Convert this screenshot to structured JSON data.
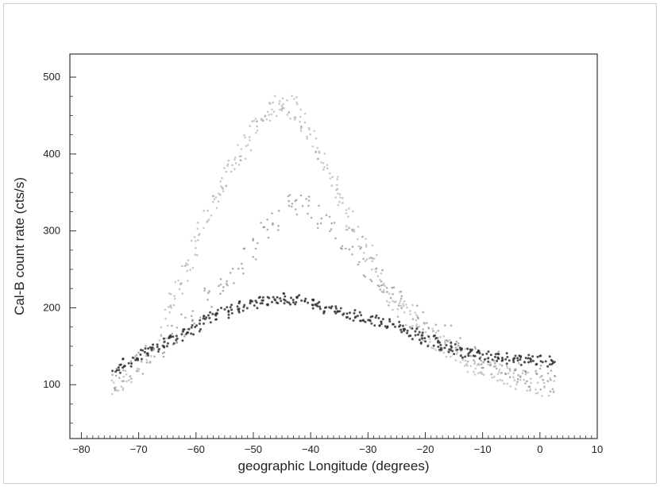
{
  "chart_data": {
    "type": "scatter",
    "title": "",
    "xlabel": "geographic Longitude (degrees)",
    "ylabel": "Cal-B count rate (cts/s)",
    "xlim": [
      -82,
      10
    ],
    "ylim": [
      30,
      530
    ],
    "xticks": [
      -80,
      -70,
      -60,
      -50,
      -40,
      -30,
      -20,
      -10,
      0,
      10
    ],
    "yticks": [
      100,
      200,
      300,
      400,
      500
    ],
    "xtick_labels": [
      "−80",
      "−70",
      "−60",
      "−50",
      "−40",
      "−30",
      "−20",
      "−10",
      "0",
      "10"
    ],
    "ytick_labels": [
      "100",
      "200",
      "300",
      "400",
      "500"
    ],
    "grid": false,
    "legend": "none",
    "series": [
      {
        "values_description": "upper (light) band",
        "color": "#9a9a9a",
        "points": [
          [
            -74,
            95
          ],
          [
            -73,
            105
          ],
          [
            -72,
            112
          ],
          [
            -70,
            125
          ],
          [
            -68,
            140
          ],
          [
            -66,
            165
          ],
          [
            -65,
            190
          ],
          [
            -64,
            205
          ],
          [
            -63,
            225
          ],
          [
            -62,
            245
          ],
          [
            -61,
            262
          ],
          [
            -60,
            280
          ],
          [
            -59,
            300
          ],
          [
            -58,
            315
          ],
          [
            -57,
            332
          ],
          [
            -56,
            350
          ],
          [
            -55,
            368
          ],
          [
            -54,
            380
          ],
          [
            -53,
            395
          ],
          [
            -52,
            405
          ],
          [
            -51,
            418
          ],
          [
            -50,
            430
          ],
          [
            -49,
            440
          ],
          [
            -48,
            448
          ],
          [
            -47,
            455
          ],
          [
            -46,
            462
          ],
          [
            -45,
            468
          ],
          [
            -44,
            465
          ],
          [
            -43,
            460
          ],
          [
            -42,
            452
          ],
          [
            -41,
            440
          ],
          [
            -40,
            425
          ],
          [
            -39,
            410
          ],
          [
            -38,
            395
          ],
          [
            -37,
            380
          ],
          [
            -36,
            362
          ],
          [
            -35,
            345
          ],
          [
            -34,
            330
          ],
          [
            -33,
            315
          ],
          [
            -32,
            300
          ],
          [
            -31,
            285
          ],
          [
            -30,
            270
          ],
          [
            -29,
            255
          ],
          [
            -28,
            242
          ],
          [
            -27,
            230
          ],
          [
            -26,
            218
          ],
          [
            -25,
            208
          ],
          [
            -24,
            198
          ],
          [
            -23,
            190
          ],
          [
            -22,
            182
          ],
          [
            -21,
            175
          ],
          [
            -20,
            168
          ],
          [
            -19,
            162
          ],
          [
            -18,
            156
          ],
          [
            -17,
            150
          ],
          [
            -16,
            146
          ],
          [
            -15,
            142
          ],
          [
            -14,
            138
          ],
          [
            -13,
            134
          ],
          [
            -12,
            130
          ],
          [
            -11,
            126
          ],
          [
            -10,
            123
          ],
          [
            -9,
            120
          ],
          [
            -8,
            118
          ],
          [
            -7,
            115
          ],
          [
            -6,
            112
          ],
          [
            -5,
            110
          ],
          [
            -4,
            108
          ],
          [
            -3,
            106
          ],
          [
            -2,
            104
          ],
          [
            -1,
            102
          ],
          [
            0,
            100
          ],
          [
            1,
            99
          ],
          [
            2,
            98
          ]
        ]
      },
      {
        "values_description": "middle band",
        "color": "#7a7a7a",
        "points": [
          [
            -74,
            110
          ],
          [
            -72,
            120
          ],
          [
            -70,
            128
          ],
          [
            -68,
            138
          ],
          [
            -66,
            150
          ],
          [
            -64,
            165
          ],
          [
            -62,
            180
          ],
          [
            -60,
            195
          ],
          [
            -58,
            210
          ],
          [
            -56,
            228
          ],
          [
            -54,
            245
          ],
          [
            -52,
            262
          ],
          [
            -50,
            280
          ],
          [
            -48,
            300
          ],
          [
            -46,
            318
          ],
          [
            -44,
            330
          ],
          [
            -42,
            335
          ],
          [
            -40,
            330
          ],
          [
            -38,
            320
          ],
          [
            -36,
            305
          ],
          [
            -34,
            288
          ],
          [
            -32,
            270
          ],
          [
            -30,
            252
          ],
          [
            -28,
            236
          ],
          [
            -26,
            220
          ],
          [
            -24,
            205
          ],
          [
            -22,
            192
          ],
          [
            -20,
            180
          ],
          [
            -18,
            170
          ],
          [
            -16,
            160
          ],
          [
            -14,
            150
          ],
          [
            -12,
            142
          ],
          [
            -10,
            135
          ],
          [
            -8,
            128
          ],
          [
            -6,
            122
          ],
          [
            -4,
            118
          ],
          [
            -2,
            114
          ],
          [
            0,
            110
          ],
          [
            2,
            108
          ]
        ]
      },
      {
        "values_description": "lower (dark) band",
        "color": "#333333",
        "points": [
          [
            -74,
            122
          ],
          [
            -73,
            126
          ],
          [
            -72,
            130
          ],
          [
            -71,
            134
          ],
          [
            -70,
            138
          ],
          [
            -69,
            142
          ],
          [
            -68,
            145
          ],
          [
            -67,
            148
          ],
          [
            -66,
            152
          ],
          [
            -65,
            156
          ],
          [
            -64,
            160
          ],
          [
            -63,
            164
          ],
          [
            -62,
            168
          ],
          [
            -61,
            172
          ],
          [
            -60,
            176
          ],
          [
            -59,
            180
          ],
          [
            -58,
            184
          ],
          [
            -57,
            188
          ],
          [
            -56,
            191
          ],
          [
            -55,
            194
          ],
          [
            -54,
            197
          ],
          [
            -53,
            200
          ],
          [
            -52,
            202
          ],
          [
            -51,
            204
          ],
          [
            -50,
            206
          ],
          [
            -49,
            208
          ],
          [
            -48,
            210
          ],
          [
            -47,
            211
          ],
          [
            -46,
            212
          ],
          [
            -45,
            212
          ],
          [
            -44,
            212
          ],
          [
            -43,
            211
          ],
          [
            -42,
            210
          ],
          [
            -41,
            208
          ],
          [
            -40,
            206
          ],
          [
            -39,
            204
          ],
          [
            -38,
            202
          ],
          [
            -37,
            200
          ],
          [
            -36,
            198
          ],
          [
            -35,
            196
          ],
          [
            -34,
            194
          ],
          [
            -33,
            192
          ],
          [
            -32,
            190
          ],
          [
            -31,
            188
          ],
          [
            -30,
            186
          ],
          [
            -29,
            184
          ],
          [
            -28,
            182
          ],
          [
            -27,
            180
          ],
          [
            -26,
            178
          ],
          [
            -25,
            175
          ],
          [
            -24,
            172
          ],
          [
            -23,
            169
          ],
          [
            -22,
            166
          ],
          [
            -21,
            163
          ],
          [
            -20,
            160
          ],
          [
            -19,
            157
          ],
          [
            -18,
            154
          ],
          [
            -17,
            151
          ],
          [
            -16,
            148
          ],
          [
            -15,
            146
          ],
          [
            -14,
            144
          ],
          [
            -13,
            142
          ],
          [
            -12,
            140
          ],
          [
            -11,
            138
          ],
          [
            -10,
            137
          ],
          [
            -9,
            136
          ],
          [
            -8,
            135
          ],
          [
            -7,
            134
          ],
          [
            -6,
            134
          ],
          [
            -5,
            133
          ],
          [
            -4,
            133
          ],
          [
            -3,
            132
          ],
          [
            -2,
            132
          ],
          [
            -1,
            131
          ],
          [
            0,
            131
          ],
          [
            1,
            130
          ],
          [
            2,
            130
          ]
        ]
      }
    ]
  }
}
